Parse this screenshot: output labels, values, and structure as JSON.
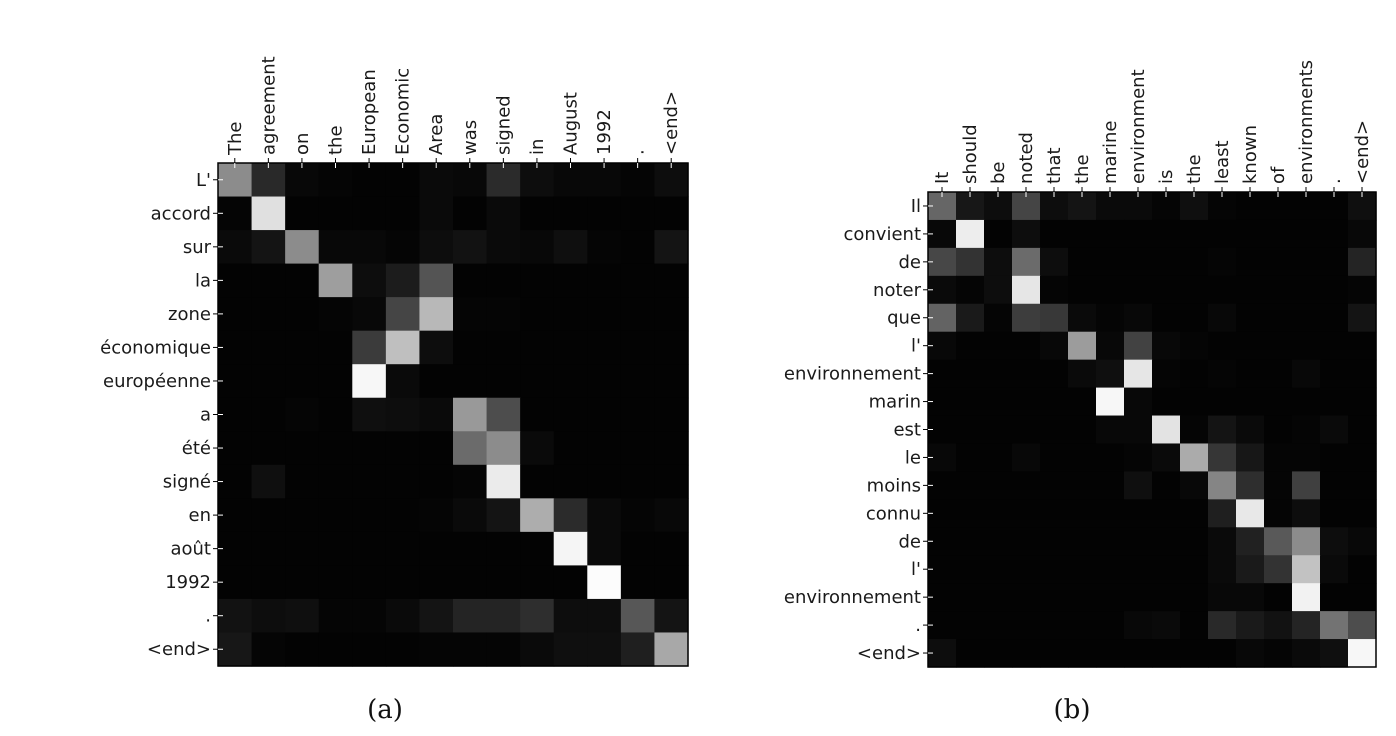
{
  "chart_data": [
    {
      "type": "heatmap",
      "caption": "(a)",
      "x_labels": [
        "The",
        "agreement",
        "on",
        "the",
        "European",
        "Economic",
        "Area",
        "was",
        "signed",
        "in",
        "August",
        "1992",
        ".",
        "<end>"
      ],
      "y_labels": [
        "L'",
        "accord",
        "sur",
        "la",
        "zone",
        "économique",
        "européenne",
        "a",
        "été",
        "signé",
        "en",
        "août",
        "1992",
        ".",
        "<end>"
      ],
      "colormap": "gray",
      "values": [
        [
          0.55,
          0.16,
          0.03,
          0.02,
          0.01,
          0.01,
          0.04,
          0.03,
          0.17,
          0.05,
          0.03,
          0.03,
          0.02,
          0.05
        ],
        [
          0.02,
          0.88,
          0.01,
          0.01,
          0.01,
          0.01,
          0.04,
          0.01,
          0.04,
          0.01,
          0.01,
          0.01,
          0.01,
          0.01
        ],
        [
          0.04,
          0.08,
          0.55,
          0.03,
          0.03,
          0.02,
          0.05,
          0.07,
          0.04,
          0.03,
          0.06,
          0.02,
          0.01,
          0.08
        ],
        [
          0.01,
          0.01,
          0.01,
          0.62,
          0.05,
          0.11,
          0.33,
          0.01,
          0.01,
          0.01,
          0.01,
          0.01,
          0.01,
          0.01
        ],
        [
          0.01,
          0.01,
          0.01,
          0.02,
          0.03,
          0.27,
          0.72,
          0.02,
          0.02,
          0.01,
          0.01,
          0.01,
          0.01,
          0.01
        ],
        [
          0.01,
          0.01,
          0.01,
          0.01,
          0.23,
          0.75,
          0.05,
          0.01,
          0.01,
          0.01,
          0.01,
          0.01,
          0.01,
          0.01
        ],
        [
          0.01,
          0.01,
          0.01,
          0.01,
          0.97,
          0.04,
          0.01,
          0.01,
          0.01,
          0.01,
          0.01,
          0.01,
          0.01,
          0.01
        ],
        [
          0.01,
          0.01,
          0.02,
          0.01,
          0.06,
          0.05,
          0.04,
          0.6,
          0.3,
          0.01,
          0.01,
          0.01,
          0.01,
          0.01
        ],
        [
          0.01,
          0.01,
          0.01,
          0.01,
          0.01,
          0.01,
          0.01,
          0.42,
          0.55,
          0.04,
          0.01,
          0.01,
          0.01,
          0.01
        ],
        [
          0.01,
          0.06,
          0.01,
          0.01,
          0.01,
          0.01,
          0.01,
          0.02,
          0.92,
          0.01,
          0.01,
          0.01,
          0.01,
          0.01
        ],
        [
          0.01,
          0.01,
          0.01,
          0.01,
          0.01,
          0.01,
          0.02,
          0.04,
          0.08,
          0.68,
          0.17,
          0.04,
          0.02,
          0.03
        ],
        [
          0.01,
          0.01,
          0.01,
          0.01,
          0.01,
          0.01,
          0.01,
          0.01,
          0.01,
          0.01,
          0.96,
          0.04,
          0.01,
          0.01
        ],
        [
          0.01,
          0.01,
          0.01,
          0.01,
          0.01,
          0.01,
          0.01,
          0.01,
          0.01,
          0.01,
          0.01,
          0.99,
          0.01,
          0.01
        ],
        [
          0.07,
          0.05,
          0.06,
          0.02,
          0.02,
          0.04,
          0.08,
          0.14,
          0.14,
          0.18,
          0.05,
          0.05,
          0.34,
          0.08
        ],
        [
          0.09,
          0.02,
          0.01,
          0.01,
          0.01,
          0.01,
          0.02,
          0.02,
          0.02,
          0.04,
          0.06,
          0.06,
          0.12,
          0.66
        ]
      ]
    },
    {
      "type": "heatmap",
      "caption": "(b)",
      "x_labels": [
        "It",
        "should",
        "be",
        "noted",
        "that",
        "the",
        "marine",
        "environment",
        "is",
        "the",
        "least",
        "known",
        "of",
        "environments",
        ".",
        "<end>"
      ],
      "y_labels": [
        "Il",
        "convient",
        "de",
        "noter",
        "que",
        "l'",
        "environnement",
        "marin",
        "est",
        "le",
        "moins",
        "connu",
        "de",
        "l'",
        "environnement",
        ".",
        "<end>"
      ],
      "colormap": "gray",
      "values": [
        [
          0.4,
          0.09,
          0.05,
          0.27,
          0.05,
          0.08,
          0.04,
          0.04,
          0.02,
          0.06,
          0.02,
          0.01,
          0.01,
          0.01,
          0.01,
          0.06
        ],
        [
          0.03,
          0.93,
          0.01,
          0.05,
          0.01,
          0.01,
          0.01,
          0.01,
          0.01,
          0.01,
          0.01,
          0.01,
          0.01,
          0.01,
          0.01,
          0.03
        ],
        [
          0.28,
          0.2,
          0.05,
          0.42,
          0.05,
          0.01,
          0.01,
          0.01,
          0.01,
          0.01,
          0.02,
          0.01,
          0.01,
          0.01,
          0.01,
          0.14
        ],
        [
          0.04,
          0.02,
          0.05,
          0.9,
          0.02,
          0.01,
          0.01,
          0.01,
          0.01,
          0.01,
          0.01,
          0.01,
          0.01,
          0.01,
          0.01,
          0.02
        ],
        [
          0.39,
          0.1,
          0.02,
          0.24,
          0.22,
          0.04,
          0.02,
          0.03,
          0.01,
          0.01,
          0.03,
          0.01,
          0.01,
          0.01,
          0.01,
          0.08
        ],
        [
          0.03,
          0.01,
          0.01,
          0.01,
          0.03,
          0.61,
          0.03,
          0.26,
          0.03,
          0.02,
          0.01,
          0.01,
          0.01,
          0.01,
          0.01,
          0.01
        ],
        [
          0.01,
          0.01,
          0.01,
          0.01,
          0.01,
          0.04,
          0.06,
          0.9,
          0.02,
          0.01,
          0.02,
          0.01,
          0.01,
          0.03,
          0.01,
          0.01
        ],
        [
          0.01,
          0.01,
          0.01,
          0.01,
          0.01,
          0.01,
          0.97,
          0.03,
          0.01,
          0.01,
          0.01,
          0.01,
          0.01,
          0.01,
          0.01,
          0.01
        ],
        [
          0.01,
          0.01,
          0.01,
          0.01,
          0.01,
          0.01,
          0.03,
          0.03,
          0.89,
          0.02,
          0.08,
          0.04,
          0.01,
          0.02,
          0.04,
          0.01
        ],
        [
          0.03,
          0.01,
          0.01,
          0.03,
          0.01,
          0.01,
          0.01,
          0.02,
          0.04,
          0.67,
          0.21,
          0.09,
          0.02,
          0.02,
          0.01,
          0.01
        ],
        [
          0.01,
          0.01,
          0.01,
          0.01,
          0.01,
          0.01,
          0.01,
          0.06,
          0.01,
          0.03,
          0.52,
          0.18,
          0.02,
          0.25,
          0.01,
          0.01
        ],
        [
          0.01,
          0.01,
          0.01,
          0.01,
          0.01,
          0.01,
          0.01,
          0.01,
          0.01,
          0.01,
          0.12,
          0.91,
          0.02,
          0.05,
          0.01,
          0.01
        ],
        [
          0.01,
          0.01,
          0.01,
          0.01,
          0.01,
          0.01,
          0.01,
          0.01,
          0.01,
          0.01,
          0.04,
          0.13,
          0.35,
          0.55,
          0.05,
          0.03
        ],
        [
          0.01,
          0.01,
          0.01,
          0.01,
          0.01,
          0.01,
          0.01,
          0.01,
          0.01,
          0.01,
          0.04,
          0.1,
          0.2,
          0.76,
          0.04,
          0.01
        ],
        [
          0.01,
          0.01,
          0.01,
          0.01,
          0.01,
          0.01,
          0.01,
          0.01,
          0.01,
          0.01,
          0.03,
          0.03,
          0.01,
          0.95,
          0.01,
          0.01
        ],
        [
          0.01,
          0.01,
          0.01,
          0.01,
          0.01,
          0.01,
          0.01,
          0.03,
          0.04,
          0.01,
          0.16,
          0.1,
          0.07,
          0.14,
          0.45,
          0.3
        ],
        [
          0.05,
          0.01,
          0.01,
          0.01,
          0.01,
          0.01,
          0.01,
          0.01,
          0.01,
          0.01,
          0.01,
          0.03,
          0.02,
          0.04,
          0.06,
          0.97
        ]
      ]
    }
  ]
}
